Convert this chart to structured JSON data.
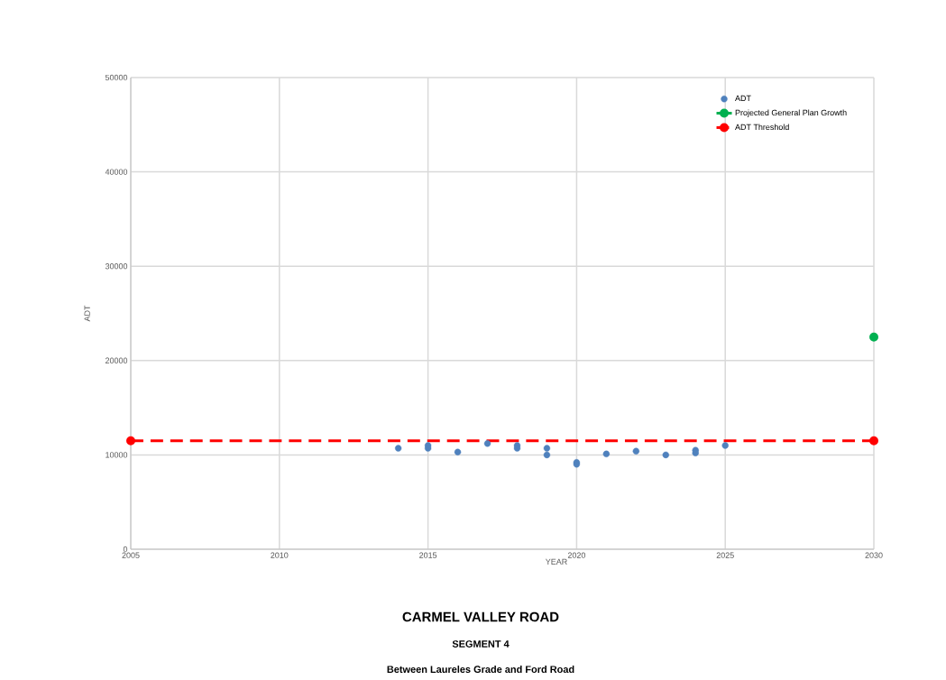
{
  "chart_data": {
    "type": "scatter",
    "title": "CARMEL VALLEY ROAD",
    "subtitle": "SEGMENT 4",
    "annotations": [
      "Between Laureles Grade and Ford Road"
    ],
    "xlabel": "YEAR",
    "ylabel": "ADT",
    "xlim": [
      2005,
      2030
    ],
    "xticks": [
      2005,
      2010,
      2015,
      2020,
      2025,
      2030
    ],
    "ylim": [
      0,
      50000
    ],
    "yticks": [
      0,
      10000,
      20000,
      30000,
      40000,
      50000
    ],
    "grid": true,
    "legend": "top right",
    "series": [
      {
        "name": "ADT",
        "marker": "circle",
        "color": "#4f81bd",
        "x": [
          2014,
          2015,
          2015,
          2016,
          2017,
          2018,
          2018,
          2019,
          2019,
          2020,
          2020,
          2021,
          2022,
          2023,
          2024,
          2024,
          2025
        ],
        "values": [
          10700,
          11000,
          10700,
          10300,
          11200,
          11000,
          10700,
          10700,
          10000,
          9200,
          9000,
          10100,
          10400,
          10000,
          10500,
          10200,
          11000
        ]
      },
      {
        "name": "Projected General Plan Growth",
        "type": "line",
        "marker": "circle",
        "line_style": "solid",
        "color": "#00b050",
        "x": [
          2030
        ],
        "values": [
          22500
        ]
      },
      {
        "name": "ADT Threshold",
        "type": "line",
        "marker": "circle",
        "line_style": "dashed",
        "color": "#ff0000",
        "x": [
          2005,
          2030
        ],
        "values": [
          11500,
          11500
        ]
      }
    ]
  }
}
